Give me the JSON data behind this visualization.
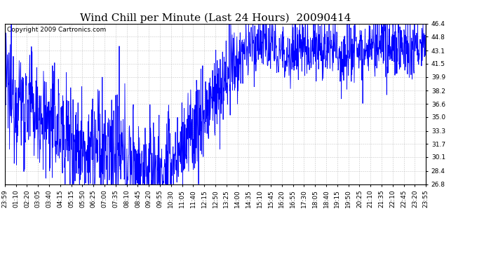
{
  "title": "Wind Chill per Minute (Last 24 Hours)  20090414",
  "copyright": "Copyright 2009 Cartronics.com",
  "line_color": "#0000FF",
  "bg_color": "#FFFFFF",
  "plot_bg_color": "#FFFFFF",
  "grid_color": "#BBBBBB",
  "ylim": [
    26.8,
    46.4
  ],
  "yticks": [
    26.8,
    28.4,
    30.1,
    31.7,
    33.3,
    35.0,
    36.6,
    38.2,
    39.9,
    41.5,
    43.1,
    44.8,
    46.4
  ],
  "xtick_labels": [
    "23:59",
    "01:10",
    "02:20",
    "03:05",
    "03:40",
    "04:15",
    "05:15",
    "05:50",
    "06:25",
    "07:00",
    "07:35",
    "08:10",
    "08:45",
    "09:20",
    "09:55",
    "10:30",
    "11:05",
    "11:40",
    "12:15",
    "12:50",
    "13:25",
    "14:00",
    "14:35",
    "15:10",
    "15:45",
    "16:20",
    "16:55",
    "17:30",
    "18:05",
    "18:40",
    "19:15",
    "19:50",
    "20:25",
    "21:10",
    "21:35",
    "22:10",
    "22:45",
    "23:20",
    "23:55"
  ],
  "title_fontsize": 11,
  "tick_fontsize": 6.5,
  "copyright_fontsize": 6.5,
  "line_width": 0.6,
  "base_curve": [
    38.5,
    38.0,
    37.5,
    37.0,
    36.5,
    36.0,
    35.5,
    35.0,
    34.5,
    34.0,
    33.5,
    33.0,
    32.5,
    32.0,
    31.8,
    31.5,
    31.2,
    31.0,
    30.8,
    30.5,
    30.3,
    30.0,
    29.8,
    29.5,
    29.3,
    29.0,
    28.8,
    28.5,
    28.3,
    28.0,
    28.5,
    29.0,
    30.0,
    31.0,
    32.0,
    33.0,
    34.0,
    35.0,
    36.0,
    37.0,
    38.0,
    39.0,
    40.0,
    41.0,
    42.0,
    43.0,
    43.5,
    44.0,
    44.5,
    43.8,
    43.5,
    43.2,
    43.0,
    42.8,
    43.0,
    43.2,
    43.5,
    43.8,
    44.0,
    43.5,
    43.0,
    43.2,
    43.5,
    43.0,
    43.2,
    43.5,
    43.8,
    43.5,
    43.2,
    43.0,
    43.2,
    43.5,
    43.8,
    44.0,
    43.8,
    43.5,
    43.2,
    43.5,
    43.8,
    44.0
  ],
  "noise_scales": [
    3.5,
    3.5,
    3.5,
    3.5,
    3.5,
    3.5,
    3.5,
    3.5,
    3.5,
    3.5,
    3.5,
    3.5,
    3.5,
    3.5,
    3.5,
    3.5,
    3.5,
    3.5,
    3.5,
    3.5,
    3.5,
    3.5,
    3.5,
    3.5,
    3.5,
    3.5,
    3.5,
    3.5,
    3.5,
    3.5,
    3.0,
    3.0,
    3.0,
    3.0,
    3.0,
    3.0,
    3.0,
    3.0,
    3.0,
    3.0,
    2.5,
    2.5,
    2.5,
    2.5,
    2.0,
    2.0,
    2.0,
    2.0,
    2.0,
    2.0,
    2.0,
    2.0,
    2.0,
    2.0,
    2.0,
    2.0,
    2.0,
    2.0,
    2.0,
    2.0,
    2.0,
    2.0,
    2.0,
    2.0,
    2.0,
    2.0,
    2.0,
    2.0,
    2.0,
    2.0,
    2.0,
    2.0,
    2.0,
    2.0,
    2.0,
    2.0,
    2.0,
    2.0,
    2.0,
    2.0
  ]
}
